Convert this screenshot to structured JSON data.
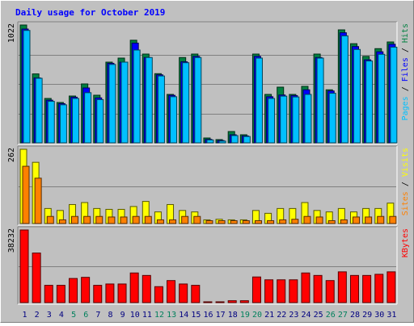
{
  "chart_data": {
    "type": "bar",
    "title": "Daily usage for October 2019",
    "categories": [
      "1",
      "2",
      "3",
      "4",
      "5",
      "6",
      "7",
      "8",
      "9",
      "10",
      "11",
      "12",
      "13",
      "14",
      "15",
      "16",
      "17",
      "18",
      "19",
      "20",
      "21",
      "22",
      "23",
      "24",
      "25",
      "26",
      "27",
      "28",
      "29",
      "30",
      "31"
    ],
    "weekend_days": [
      "5",
      "6",
      "12",
      "13",
      "19",
      "20",
      "26",
      "27"
    ],
    "colors": {
      "hits": "#008040",
      "files": "#0000ff",
      "pages": "#00c0ff",
      "visits": "#ffff00",
      "sites": "#ff8000",
      "kbytes": "#ff0000",
      "weekend_label": "#00805c",
      "weekday_label": "#000080",
      "grid": "#808080",
      "plot_bg": "#c0c0c0"
    },
    "panels": [
      {
        "name": "hits-files-pages",
        "y_max_label": "1022",
        "ylim": [
          0,
          1022
        ],
        "legend": [
          {
            "text": "Pages",
            "color": "#00c0ff"
          },
          {
            "text": " / ",
            "color": "#000000"
          },
          {
            "text": "Files",
            "color": "#0000ff"
          },
          {
            "text": " / ",
            "color": "#000000"
          },
          {
            "text": "Hits",
            "color": "#008040"
          }
        ],
        "series": [
          {
            "name": "Hits",
            "color": "#008040",
            "values": [
              1022,
              598,
              385,
              350,
              406,
              511,
              413,
              700,
              735,
              890,
              770,
              600,
              420,
              740,
              770,
              42,
              28,
              98,
              70,
              770,
              420,
              483,
              420,
              490,
              770,
              460,
              980,
              860,
              750,
              817,
              875
            ]
          },
          {
            "name": "Files",
            "color": "#0000ff",
            "values": [
              987,
              563,
              370,
              340,
              396,
              476,
              390,
              690,
              700,
              865,
              740,
              590,
              412,
              703,
              750,
              30,
              20,
              70,
              60,
              750,
              400,
              415,
              410,
              460,
              740,
              450,
              955,
              835,
              720,
              790,
              855
            ]
          },
          {
            "name": "Pages",
            "color": "#00c0ff",
            "values": [
              975,
              560,
              360,
              330,
              385,
              435,
              375,
              680,
              700,
              805,
              740,
              580,
              400,
              695,
              740,
              25,
              15,
              63,
              55,
              735,
              385,
              405,
              398,
              420,
              735,
              430,
              928,
              810,
              710,
              768,
              830
            ]
          }
        ]
      },
      {
        "name": "visits-sites",
        "y_max_label": "262",
        "ylim": [
          0,
          262
        ],
        "legend": [
          {
            "text": "Sites",
            "color": "#ff8000"
          },
          {
            "text": " / ",
            "color": "#000000"
          },
          {
            "text": "Visits",
            "color": "#ffff00"
          }
        ],
        "series": [
          {
            "name": "Visits",
            "color": "#ffff00",
            "values": [
              262,
              216,
              53,
              46,
              67,
              74,
              53,
              50,
              50,
              60,
              78,
              41,
              67,
              46,
              41,
              13,
              15,
              13,
              13,
              46,
              36,
              53,
              53,
              74,
              46,
              41,
              53,
              41,
              53,
              53,
              72
            ]
          },
          {
            "name": "Sites",
            "color": "#ff8000",
            "values": [
              202,
              160,
              25,
              13,
              25,
              25,
              25,
              23,
              23,
              25,
              25,
              13,
              13,
              25,
              25,
              10,
              10,
              10,
              10,
              10,
              10,
              13,
              15,
              25,
              23,
              10,
              13,
              23,
              23,
              25,
              25
            ]
          }
        ]
      },
      {
        "name": "kbytes",
        "y_max_label": "38232",
        "ylim": [
          0,
          38232
        ],
        "legend": [
          {
            "text": "KBytes",
            "color": "#ff0000"
          }
        ],
        "series": [
          {
            "name": "KBytes",
            "color": "#ff0000",
            "values": [
              38232,
              26100,
              9100,
              9100,
              12700,
              13300,
              9100,
              9800,
              9800,
              15600,
              14300,
              8400,
              11600,
              9800,
              9100,
              300,
              300,
              1000,
              1000,
              13500,
              12000,
              12000,
              12000,
              15600,
              14300,
              11600,
              16200,
              14300,
              14300,
              14900,
              16200
            ]
          }
        ]
      }
    ]
  }
}
